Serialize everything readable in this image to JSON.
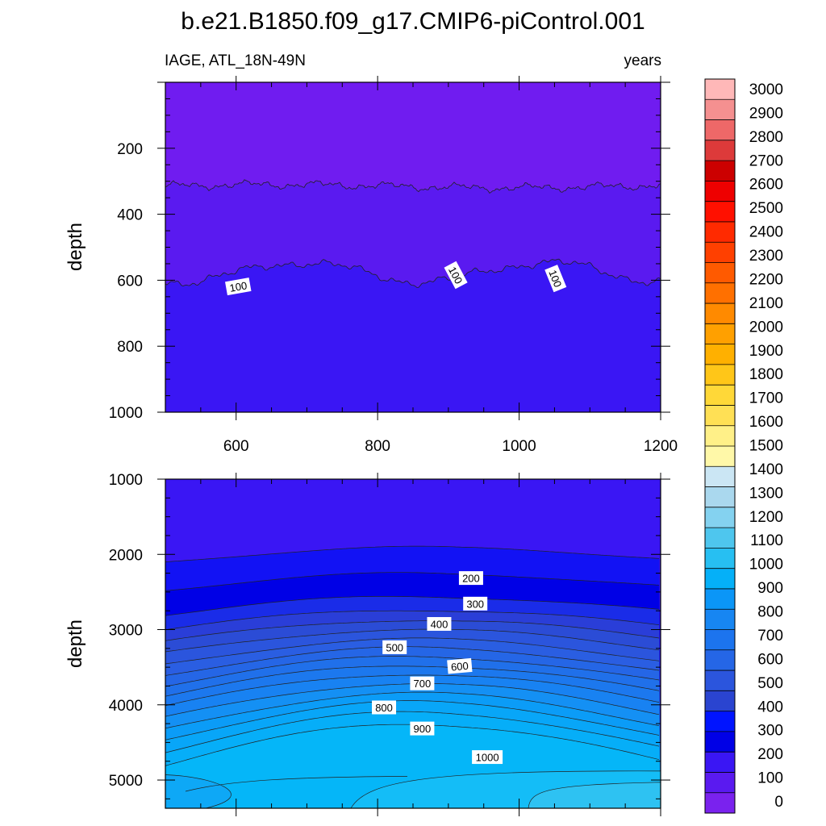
{
  "chart_data": {
    "title": "b.e21.B1850.f09_g17.CMIP6-piControl.001",
    "colorbar": {
      "levels": [
        0,
        100,
        200,
        300,
        400,
        500,
        600,
        700,
        800,
        900,
        1000,
        1100,
        1200,
        1300,
        1400,
        1500,
        1600,
        1700,
        1800,
        1900,
        2000,
        2100,
        2200,
        2300,
        2400,
        2500,
        2600,
        2700,
        2800,
        2900,
        3000
      ],
      "labels": [
        "0",
        "100",
        "200",
        "300",
        "400",
        "500",
        "600",
        "700",
        "800",
        "900",
        "1000",
        "1100",
        "1200",
        "1300",
        "1400",
        "1500",
        "1600",
        "1700",
        "1800",
        "1900",
        "2000",
        "2100",
        "2200",
        "2300",
        "2400",
        "2500",
        "2600",
        "2700",
        "2800",
        "2900",
        "3000"
      ],
      "colors": [
        "#7a22ee",
        "#5a1af0",
        "#3a16f4",
        "#0000e6",
        "#0014ff",
        "#2a44d0",
        "#2b55dd",
        "#2566e6",
        "#1c74ee",
        "#1786f2",
        "#0b96f7",
        "#05b0f8",
        "#27bff2",
        "#4ec6ee",
        "#84d2f0",
        "#aad8ee",
        "#cbe6f4",
        "#fff8a8",
        "#fff088",
        "#ffe055",
        "#ffd838",
        "#ffc618",
        "#ffb000",
        "#ffa000",
        "#ff8a00",
        "#ff7000",
        "#ff5a00",
        "#ff4000",
        "#ff2a00",
        "#ff1000",
        "#ee0000",
        "#cc0000",
        "#dd3a3a",
        "#ee6868",
        "#f59090",
        "#ffb8b8"
      ]
    },
    "panels": [
      {
        "type": "contour",
        "left_label": "IAGE, ATL_18N-49N",
        "right_label": "years",
        "ylabel": "depth",
        "xlim": [
          500,
          1200
        ],
        "ylim": [
          0,
          1000
        ],
        "xticks": [
          600,
          800,
          1000,
          1200
        ],
        "xtick_labels": [
          "600",
          "800",
          "1000",
          "1200"
        ],
        "yticks": [
          200,
          400,
          600,
          800,
          1000
        ],
        "ytick_labels": [
          "200",
          "400",
          "600",
          "800",
          "1000"
        ],
        "contour_labels": [
          {
            "text": "100",
            "x": 603,
            "y": 620
          },
          {
            "text": "100",
            "x": 910,
            "y": 585
          },
          {
            "text": "100",
            "x": 1051,
            "y": 595
          }
        ]
      },
      {
        "type": "contour",
        "ylabel": "depth",
        "xlim": [
          500,
          1200
        ],
        "ylim": [
          1000,
          5375
        ],
        "yticks": [
          1000,
          2000,
          3000,
          4000,
          5000
        ],
        "ytick_labels": [
          "1000",
          "2000",
          "3000",
          "4000",
          "5000"
        ],
        "contour_labels": [
          {
            "text": "200",
            "x": 932,
            "y": 2320
          },
          {
            "text": "300",
            "x": 938,
            "y": 2660
          },
          {
            "text": "400",
            "x": 887,
            "y": 2930
          },
          {
            "text": "500",
            "x": 824,
            "y": 3240
          },
          {
            "text": "600",
            "x": 916,
            "y": 3490
          },
          {
            "text": "700",
            "x": 863,
            "y": 3720
          },
          {
            "text": "800",
            "x": 809,
            "y": 4040
          },
          {
            "text": "900",
            "x": 863,
            "y": 4320
          },
          {
            "text": "1000",
            "x": 955,
            "y": 4700
          }
        ]
      }
    ]
  }
}
